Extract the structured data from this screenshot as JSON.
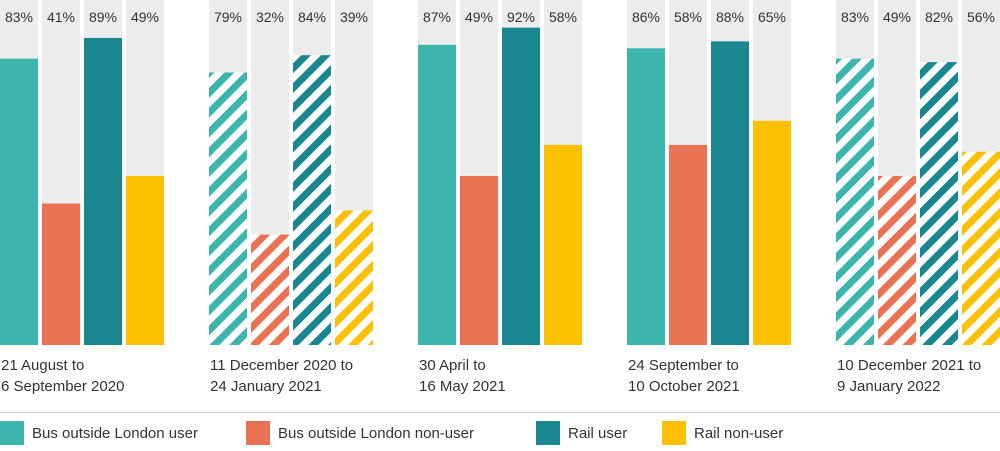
{
  "chart_data": {
    "type": "bar",
    "ylim": [
      0,
      100
    ],
    "categories": [
      "21 August to\n6 September 2020",
      "11 December 2020 to\n24 January 2021",
      "30 April to\n16 May 2021",
      "24 September to\n10 October 2021",
      "10 December 2021 to\n9 January 2022"
    ],
    "hatched_categories": [
      false,
      true,
      false,
      false,
      true
    ],
    "series": [
      {
        "name": "Bus outside London user",
        "color": "#3cb6ad",
        "values": [
          83,
          79,
          87,
          86,
          83
        ]
      },
      {
        "name": "Bus outside London non-user",
        "color": "#ea7254",
        "values": [
          41,
          32,
          49,
          58,
          49
        ]
      },
      {
        "name": "Rail user",
        "color": "#1a8690",
        "values": [
          89,
          84,
          92,
          88,
          82
        ]
      },
      {
        "name": "Rail non-user",
        "color": "#fbc000",
        "values": [
          49,
          39,
          58,
          65,
          56
        ]
      }
    ],
    "value_suffix": "%",
    "grid": false
  },
  "legend": {
    "items": [
      {
        "label": "Bus outside London user",
        "color": "#3cb6ad"
      },
      {
        "label": "Bus outside London non-user",
        "color": "#ea7254"
      },
      {
        "label": "Rail user",
        "color": "#1a8690"
      },
      {
        "label": "Rail non-user",
        "color": "#fbc000"
      }
    ]
  },
  "colors": {
    "track": "#ececec",
    "text": "#333333"
  }
}
